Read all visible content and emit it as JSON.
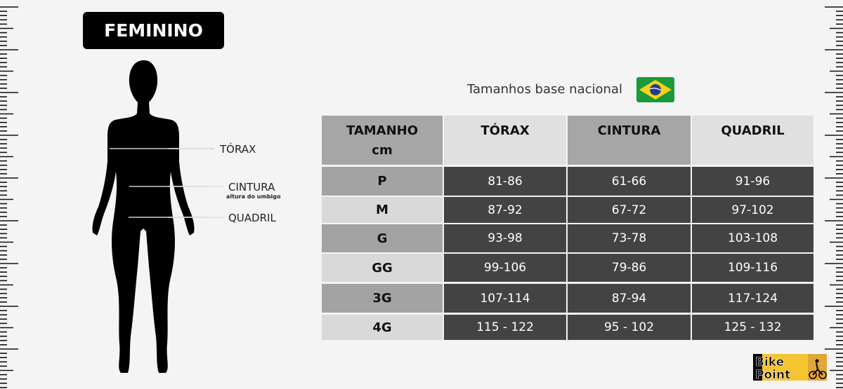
{
  "title": "FEMININO",
  "measure_labels": {
    "torax": "TÓRAX",
    "cintura": "CINTURA",
    "cintura_note": "altura do umbigo",
    "quadril": "QUADRIL"
  },
  "heading": "Tamanhos base nacional",
  "flag_icon": "brazil-flag-icon",
  "table": {
    "headers": [
      "TAMANHO",
      "TÓRAX",
      "CINTURA",
      "QUADRIL"
    ],
    "header_unit": "cm",
    "rows": [
      {
        "size": "P",
        "torax": "81-86",
        "cintura": "61-66",
        "quadril": "91-96"
      },
      {
        "size": "M",
        "torax": "87-92",
        "cintura": "67-72",
        "quadril": "97-102"
      },
      {
        "size": "G",
        "torax": "93-98",
        "cintura": "73-78",
        "quadril": "103-108"
      },
      {
        "size": "GG",
        "torax": "99-106",
        "cintura": "79-86",
        "quadril": "109-116"
      },
      {
        "size": "3G",
        "torax": "107-114",
        "cintura": "87-94",
        "quadril": "117-124"
      },
      {
        "size": "4G",
        "torax": "115 - 122",
        "cintura": "95 - 102",
        "quadril": "125 - 132"
      }
    ]
  },
  "logo": {
    "line1": "Bike",
    "line2": "Point"
  },
  "colors": {
    "dark_cell": "#434343",
    "header_dark": "#a6a6a6",
    "header_light": "#e0e0e0",
    "logo_yellow": "#f5c431"
  }
}
